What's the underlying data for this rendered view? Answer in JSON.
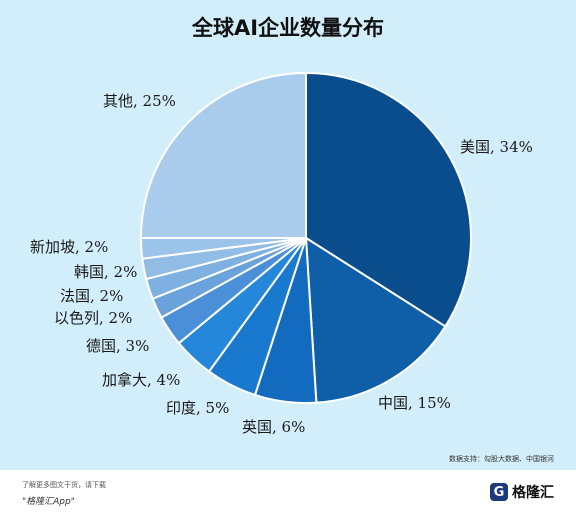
{
  "chart_data": {
    "type": "pie",
    "title": "全球AI企业数量分布",
    "slices": [
      {
        "label": "美国, 34%",
        "value": 34,
        "color": "#0a4d8c"
      },
      {
        "label": "中国, 15%",
        "value": 15,
        "color": "#0f5ea8"
      },
      {
        "label": "英国, 6%",
        "value": 6,
        "color": "#136bbf"
      },
      {
        "label": "印度, 5%",
        "value": 5,
        "color": "#1979cf"
      },
      {
        "label": "加拿大, 4%",
        "value": 4,
        "color": "#2587da"
      },
      {
        "label": "德国, 3%",
        "value": 3,
        "color": "#4a8fd8"
      },
      {
        "label": "以色列, 2%",
        "value": 2,
        "color": "#6aa2dc"
      },
      {
        "label": "法国, 2%",
        "value": 2,
        "color": "#7eb0e2"
      },
      {
        "label": "韩国, 2%",
        "value": 2,
        "color": "#90bce6"
      },
      {
        "label": "新加坡, 2%",
        "value": 2,
        "color": "#9cc4ea"
      },
      {
        "label": "其他, 25%",
        "value": 25,
        "color": "#a9ccec"
      }
    ]
  },
  "source": "数据支持：勾股大数据、中国银河",
  "footer": {
    "line1": "了解更多图文干货，请下载",
    "line2": "\"格隆汇App\"",
    "logo_mark": "G",
    "logo_text": "格隆汇"
  }
}
